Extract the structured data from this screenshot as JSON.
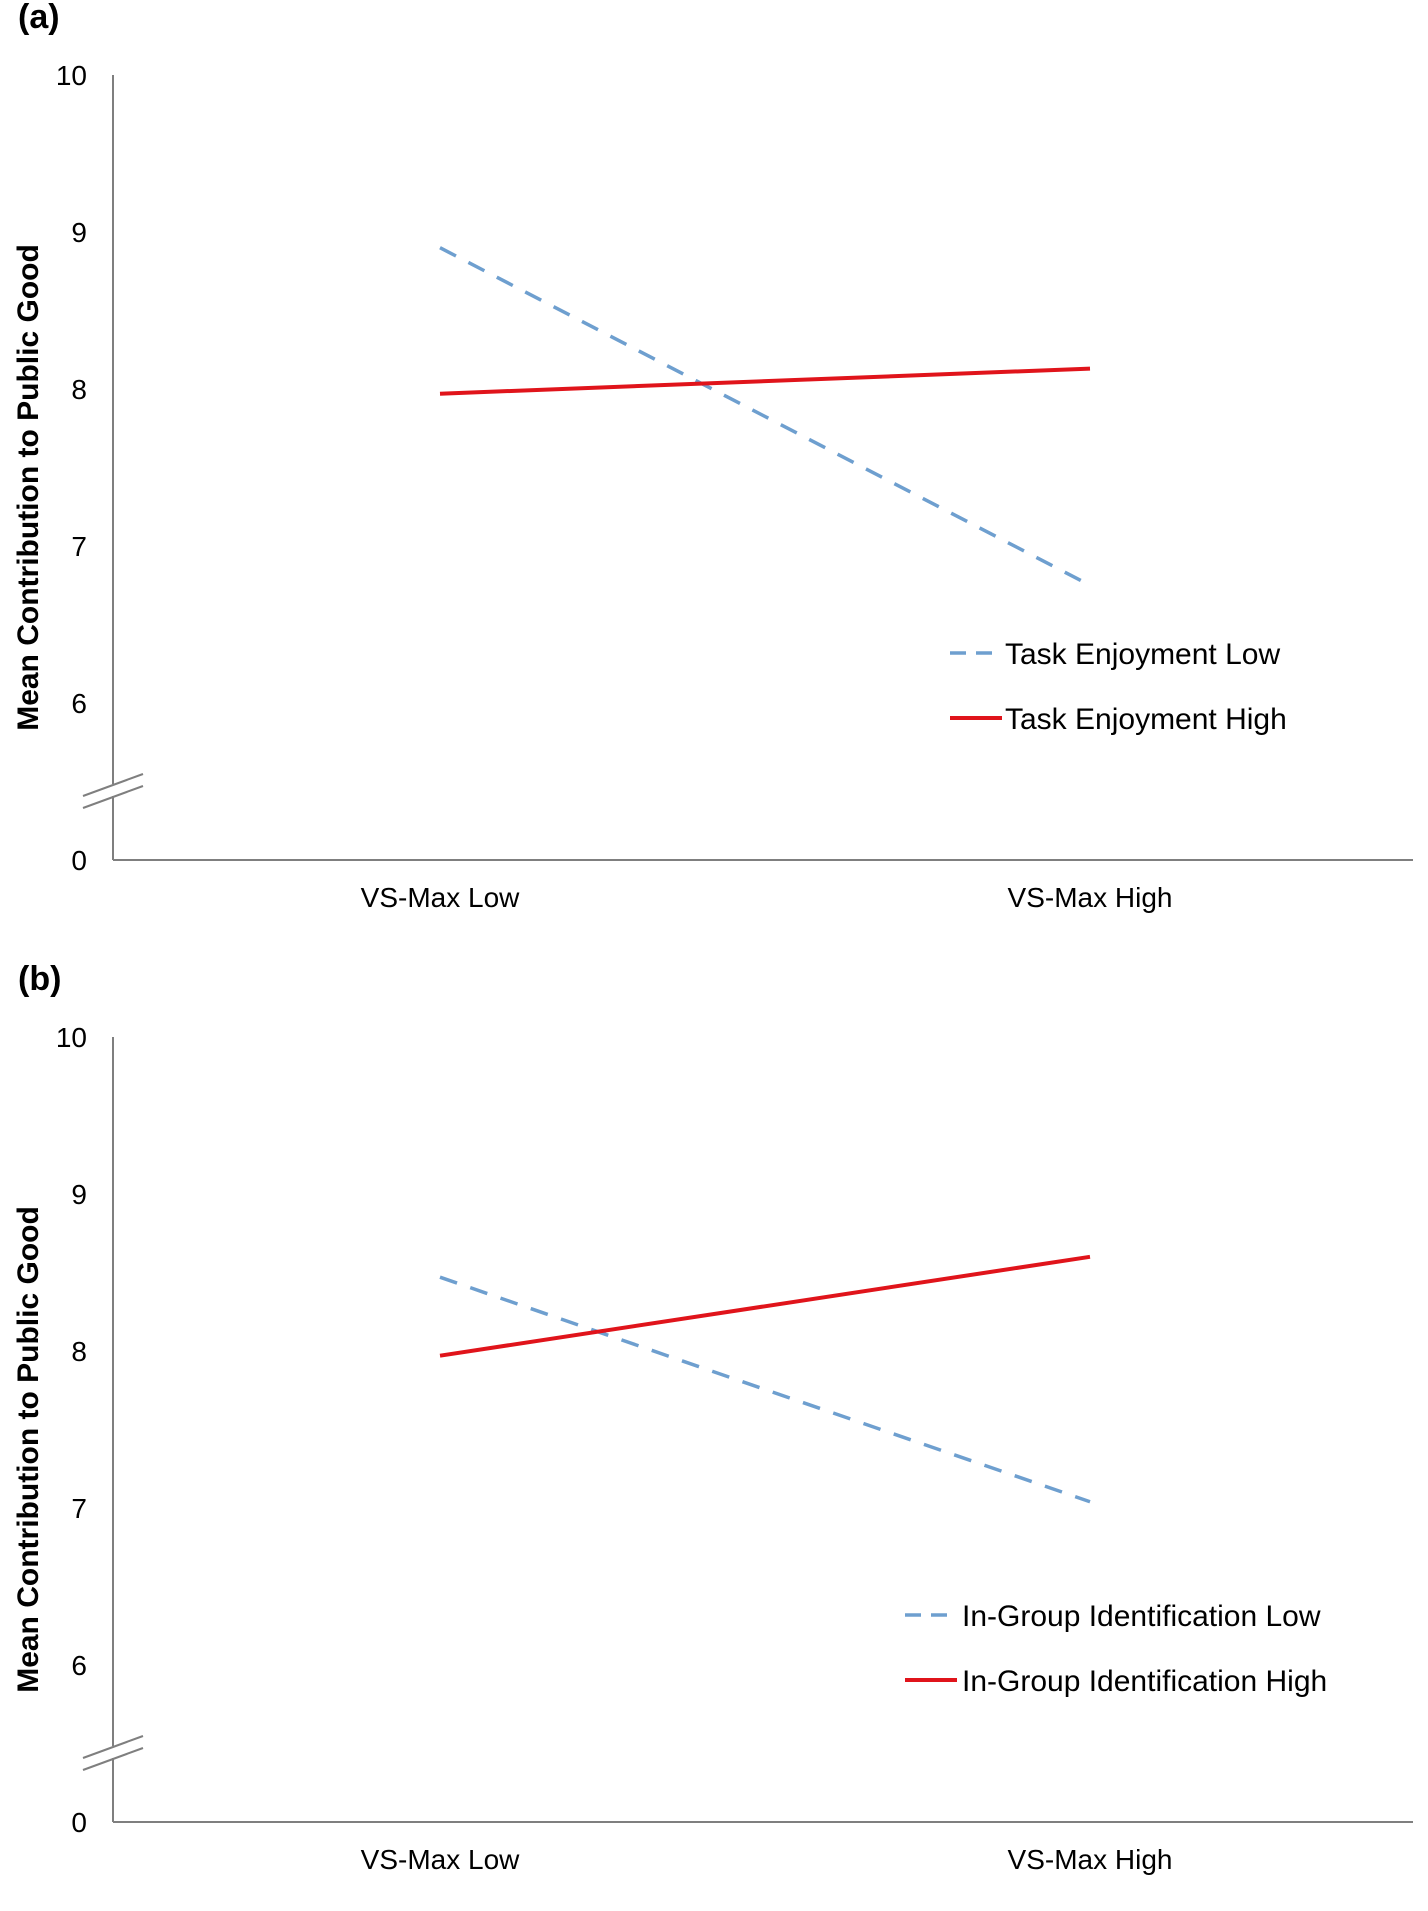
{
  "chart_data": [
    {
      "panel_label": "(a)",
      "type": "line",
      "ylabel": "Mean Contribution to Public Good",
      "categories": [
        "VS-Max Low",
        "VS-Max High"
      ],
      "y_ticks": [
        0,
        6,
        7,
        8,
        9,
        10
      ],
      "y_axis_break": "between 0 and 6",
      "ylim": [
        0,
        10
      ],
      "grid": false,
      "legend_position": "right",
      "series": [
        {
          "name": "Task Enjoyment Low",
          "values": [
            8.9,
            6.75
          ],
          "color": "#6e9fcf",
          "style": "dashed"
        },
        {
          "name": "Task Enjoyment High",
          "values": [
            7.97,
            8.13
          ],
          "color": "#e0141b",
          "style": "solid"
        }
      ]
    },
    {
      "panel_label": "(b)",
      "type": "line",
      "ylabel": "Mean Contribution to Public Good",
      "categories": [
        "VS-Max Low",
        "VS-Max High"
      ],
      "y_ticks": [
        0,
        6,
        7,
        8,
        9,
        10
      ],
      "y_axis_break": "between 0 and 6",
      "ylim": [
        0,
        10
      ],
      "grid": false,
      "legend_position": "bottom-right",
      "series": [
        {
          "name": "In-Group Identification Low",
          "values": [
            8.47,
            7.04
          ],
          "color": "#6e9fcf",
          "style": "dashed"
        },
        {
          "name": "In-Group Identification High",
          "values": [
            7.97,
            8.6
          ],
          "color": "#e0141b",
          "style": "solid"
        }
      ]
    }
  ]
}
